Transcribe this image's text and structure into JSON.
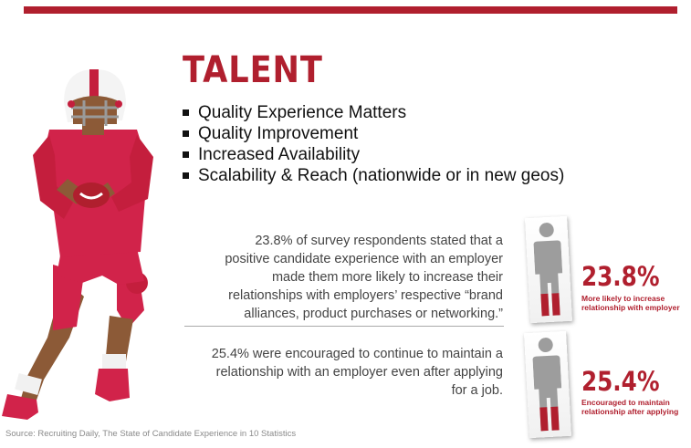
{
  "title": "TALENT",
  "bullets": [
    "Quality Experience Matters",
    "Quality Improvement",
    "Increased Availability",
    "Scalability & Reach (nationwide or in new geos)"
  ],
  "stats": [
    {
      "lines": [
        "23.8% of survey respondents stated that a",
        "positive candidate experience with an employer",
        "made them more likely to increase their",
        "relationships with employers’ respective “brand",
        "alliances, product purchases or networking.”"
      ],
      "value": "23.8%",
      "caption_lines": [
        "More likely to increase",
        "relationship with employer"
      ],
      "fill_fraction": 0.238
    },
    {
      "lines": [
        "25.4% were encouraged to continue to maintain a",
        "relationship with an employer even after applying",
        "for a job."
      ],
      "value": "25.4%",
      "caption_lines": [
        "Encouraged to maintain",
        "relationship after applying"
      ],
      "fill_fraction": 0.254
    }
  ],
  "source": "Source: Recruiting Daily, The State of Candidate Experience in 10 Statistics",
  "colors": {
    "accent": "#b01f2e",
    "figure_gray": "#9d9d9d",
    "skin": "#8c5a37"
  },
  "icons": {
    "player": "football-player-illustration",
    "person": "person-silhouette-icon"
  }
}
